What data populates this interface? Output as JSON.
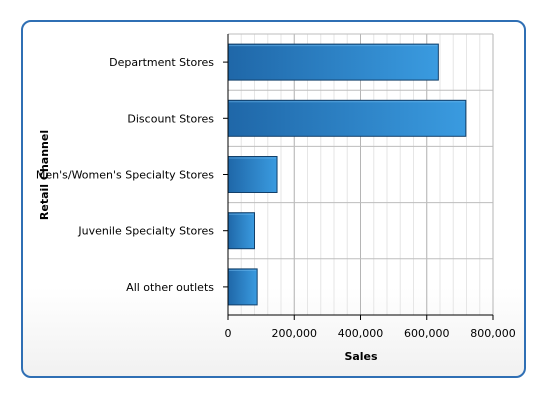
{
  "chart_data": {
    "type": "bar",
    "orientation": "horizontal",
    "title": "",
    "xlabel": "Sales",
    "ylabel": "Retail Channel",
    "categories": [
      "Department Stores",
      "Discount Stores",
      "Men's/Women's Specialty Stores",
      "Juvenile Specialty Stores",
      "All other outlets"
    ],
    "values": [
      635000,
      718000,
      148000,
      80000,
      88000
    ],
    "xlim": [
      0,
      800000
    ],
    "xticks": [
      0,
      200000,
      400000,
      600000,
      800000
    ],
    "xtick_labels": [
      "0",
      "200,000",
      "400,000",
      "600,000",
      "800,000"
    ],
    "grid": true,
    "legend": "none",
    "colors": {
      "bar_light": "#3a9be0",
      "bar_dark": "#1f67a8",
      "bar_edge": "#123f69",
      "frame": "#2f6fb4"
    }
  }
}
